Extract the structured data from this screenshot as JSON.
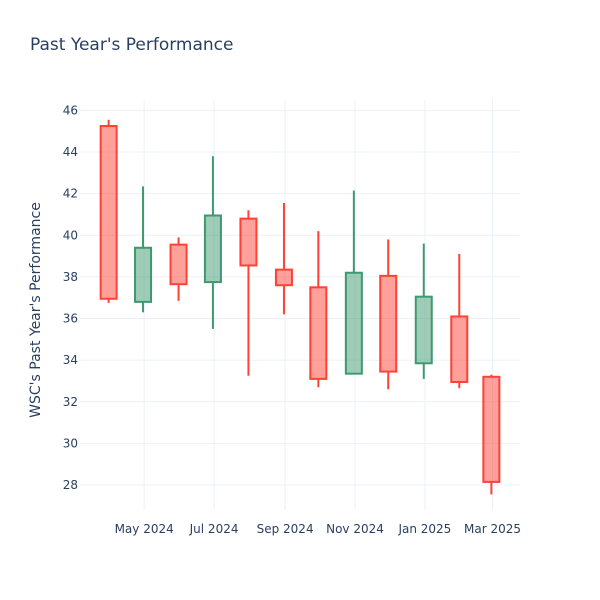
{
  "chart_data": {
    "type": "candlestick",
    "title": "Past Year's Performance",
    "xlabel": "",
    "ylabel": "WSC's Past Year's Performance",
    "ylim": [
      26.8,
      46.5
    ],
    "yticks": [
      28,
      30,
      32,
      34,
      36,
      38,
      40,
      42,
      44,
      46
    ],
    "xticks": [
      {
        "date": "2024-05-01",
        "label": "May 2024"
      },
      {
        "date": "2024-07-01",
        "label": "Jul 2024"
      },
      {
        "date": "2024-09-01",
        "label": "Sep 2024"
      },
      {
        "date": "2024-11-01",
        "label": "Nov 2024"
      },
      {
        "date": "2025-01-01",
        "label": "Jan 2025"
      },
      {
        "date": "2025-03-01",
        "label": "Mar 2025"
      }
    ],
    "xrange": [
      "2024-03-06",
      "2025-03-25"
    ],
    "grid": true,
    "colors": {
      "increasing": "#3d9970",
      "decreasing": "#ff4136"
    },
    "candles": [
      {
        "date": "2024-03-31",
        "open": 45.25,
        "high": 45.55,
        "low": 36.75,
        "close": 36.95
      },
      {
        "date": "2024-04-30",
        "open": 36.8,
        "high": 42.35,
        "low": 36.3,
        "close": 39.4
      },
      {
        "date": "2024-05-31",
        "open": 39.55,
        "high": 39.9,
        "low": 36.85,
        "close": 37.65
      },
      {
        "date": "2024-06-30",
        "open": 37.75,
        "high": 43.8,
        "low": 35.5,
        "close": 40.95
      },
      {
        "date": "2024-07-31",
        "open": 40.8,
        "high": 41.2,
        "low": 33.25,
        "close": 38.55
      },
      {
        "date": "2024-08-31",
        "open": 38.35,
        "high": 41.55,
        "low": 36.2,
        "close": 37.6
      },
      {
        "date": "2024-09-30",
        "open": 37.5,
        "high": 40.2,
        "low": 32.7,
        "close": 33.1
      },
      {
        "date": "2024-10-31",
        "open": 33.35,
        "high": 42.15,
        "low": 33.35,
        "close": 38.2
      },
      {
        "date": "2024-11-30",
        "open": 38.05,
        "high": 39.8,
        "low": 32.6,
        "close": 33.45
      },
      {
        "date": "2024-12-31",
        "open": 33.85,
        "high": 39.6,
        "low": 33.1,
        "close": 37.05
      },
      {
        "date": "2025-01-31",
        "open": 36.1,
        "high": 39.1,
        "low": 32.65,
        "close": 32.95
      },
      {
        "date": "2025-02-28",
        "open": 33.2,
        "high": 33.3,
        "low": 27.55,
        "close": 28.15
      }
    ]
  }
}
